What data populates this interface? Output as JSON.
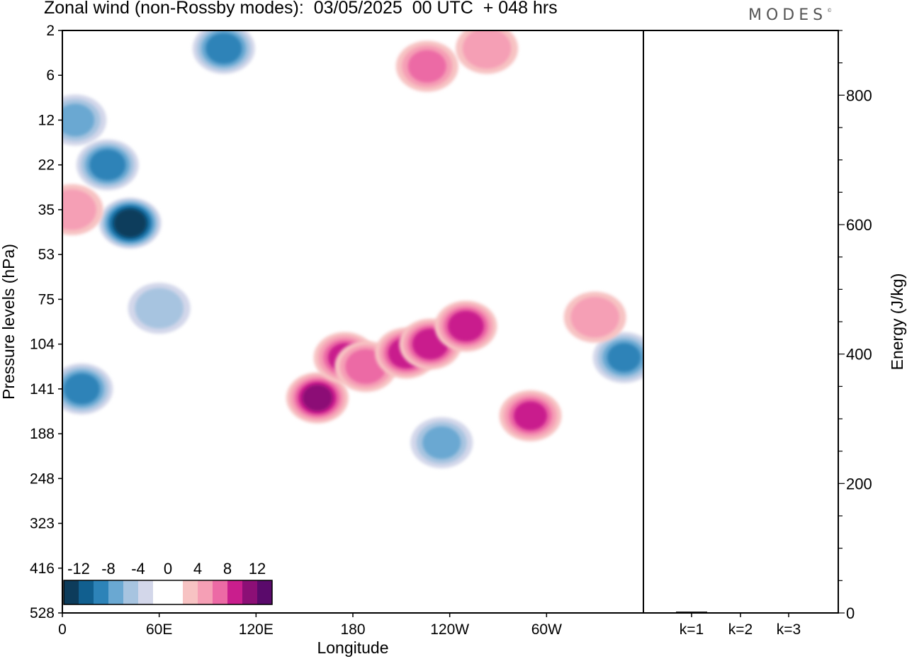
{
  "header": {
    "title": "Zonal wind (non-Rossby modes):  03/05/2025  00 UTC  + 048 hrs",
    "logo": "MODES"
  },
  "chart_data": {
    "type": "heatmap",
    "xlabel": "Longitude",
    "ylabel": "Pressure levels (hPa)",
    "x_ticks": [
      "0",
      "60E",
      "120E",
      "180",
      "120W",
      "60W"
    ],
    "y_ticks": [
      "2",
      "6",
      "12",
      "22",
      "35",
      "53",
      "75",
      "104",
      "141",
      "188",
      "248",
      "323",
      "416",
      "528"
    ],
    "colorbar": {
      "labels": [
        "-12",
        "-8",
        "-4",
        "0",
        "4",
        "8",
        "12"
      ],
      "colors": [
        "#0d3c5b",
        "#115f8f",
        "#2d83b8",
        "#6aa8d2",
        "#a7c4e0",
        "#d3d7ea",
        "#ffffff",
        "#ffffff",
        "#f7c3c3",
        "#f59fb5",
        "#ec6aa5",
        "#c91e8d",
        "#8c0f76",
        "#5a0a6b"
      ]
    },
    "energy_panel": {
      "ylabel": "Energy (J/kg)",
      "y_ticks": [
        "0",
        "200",
        "400",
        "600",
        "800"
      ],
      "ylim": [
        0,
        900
      ],
      "categories": [
        "k=1",
        "k=2",
        "k=3"
      ],
      "values": [
        2,
        1,
        1
      ]
    },
    "anomalies": [
      {
        "lon": 42,
        "lev": 4.3,
        "value": -14
      },
      {
        "lon": 28,
        "lev": 3.0,
        "value": -9
      },
      {
        "lon": 12,
        "lev": 8.0,
        "value": -9
      },
      {
        "lon": 8,
        "lev": 2.0,
        "value": -6
      },
      {
        "lon": 100,
        "lev": 0.4,
        "value": -9
      },
      {
        "lon": 158,
        "lev": 8.2,
        "value": 10
      },
      {
        "lon": 175,
        "lev": 7.3,
        "value": 8
      },
      {
        "lon": 188,
        "lev": 7.5,
        "value": 7
      },
      {
        "lon": 213,
        "lev": 7.2,
        "value": 9
      },
      {
        "lon": 228,
        "lev": 7.0,
        "value": 9
      },
      {
        "lon": 250,
        "lev": 6.6,
        "value": 9
      },
      {
        "lon": 226,
        "lev": 0.8,
        "value": 6
      },
      {
        "lon": 263,
        "lev": 0.4,
        "value": 5
      },
      {
        "lon": 290,
        "lev": 8.6,
        "value": 8
      },
      {
        "lon": 235,
        "lev": 9.2,
        "value": -6
      },
      {
        "lon": 348,
        "lev": 7.3,
        "value": -8
      },
      {
        "lon": 60,
        "lev": 6.2,
        "value": -5
      },
      {
        "lon": 330,
        "lev": 6.4,
        "value": 5
      },
      {
        "lon": 6,
        "lev": 4.0,
        "value": 5
      }
    ]
  }
}
